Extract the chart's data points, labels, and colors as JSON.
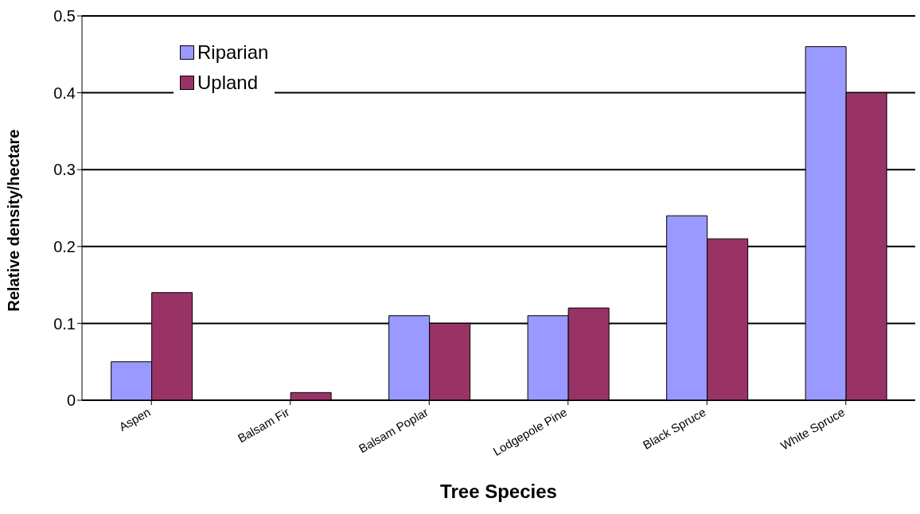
{
  "chart_data": {
    "type": "bar",
    "xlabel": "Tree Species",
    "ylabel": "Relative density/hectare",
    "categories": [
      "Aspen",
      "Balsam Fir",
      "Balsam Poplar",
      "Lodgepole Pine",
      "Black Spruce",
      "White Spruce"
    ],
    "series": [
      {
        "name": "Riparian",
        "color": "#9999ff",
        "values": [
          0.05,
          0,
          0.11,
          0.11,
          0.24,
          0.46
        ]
      },
      {
        "name": "Upland",
        "color": "#993366",
        "values": [
          0.14,
          0.01,
          0.1,
          0.12,
          0.21,
          0.4
        ]
      }
    ],
    "ylim": [
      0,
      0.5
    ],
    "yticks": [
      0,
      0.1,
      0.2,
      0.3,
      0.4,
      0.5
    ],
    "grid": "y",
    "legend": "top left"
  }
}
